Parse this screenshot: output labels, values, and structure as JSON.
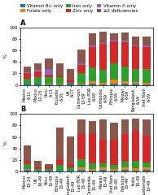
{
  "chart_data": [
    {
      "type": "bar",
      "stacked": true,
      "title": "A",
      "ylabel": "%",
      "categories": [
        "Mexico\n6-11",
        "Mexico\n12-23",
        "Peru\n6-11",
        "Ecuador\n6-35",
        "UK\n6-17",
        "Cameroon\n12-59",
        "Lao PDR\n6-59",
        "Cambodia\n6-59",
        "Ethiopia\n6-59",
        "Malawi\n6-59",
        "Bangladesh\n6-59",
        "Viet Nam\n6-59"
      ],
      "series": [
        {
          "name": "Vitamin B₁₂ only",
          "values": [
            2,
            2,
            1,
            1,
            2,
            1,
            2,
            1,
            2,
            2,
            2,
            1
          ]
        },
        {
          "name": "Folate only",
          "values": [
            1,
            1,
            1,
            2,
            0,
            2,
            4,
            3,
            8,
            5,
            3,
            3
          ]
        },
        {
          "name": "Iron only",
          "values": [
            8,
            10,
            12,
            10,
            2,
            18,
            25,
            22,
            28,
            25,
            22,
            24
          ]
        },
        {
          "name": "Zinc only",
          "values": [
            10,
            10,
            4,
            4,
            6,
            14,
            35,
            45,
            38,
            42,
            40,
            38
          ]
        },
        {
          "name": "Vitamin A only",
          "values": [
            1,
            3,
            10,
            0,
            0,
            2,
            3,
            2,
            2,
            3,
            2,
            2
          ]
        },
        {
          "name": "≥2 deficiencies",
          "values": [
            10,
            12,
            18,
            20,
            18,
            25,
            20,
            20,
            12,
            14,
            15,
            16
          ]
        }
      ],
      "ylim": [
        0,
        100
      ],
      "yticks": [
        0,
        20,
        40,
        60,
        80,
        100
      ],
      "legend": "upper center"
    },
    {
      "type": "bar",
      "stacked": true,
      "title": "B",
      "ylabel": "%",
      "categories": [
        "Mexico\n15-24",
        "UK\n16-49",
        "Peru\n15-49",
        "Ethiopia\n15-49",
        "Bangladesh\n15-49",
        "Lao PDR\n15-49",
        "Cambodia\n15-49",
        "Malawi\n15-49",
        "Viet Nam\n15-49",
        "Pakistan\n15-49",
        "India\n15-49",
        "Guatemala\n15-49"
      ],
      "series": [
        {
          "name": "Vitamin B₁₂ only",
          "values": [
            3,
            2,
            1,
            1,
            2,
            3,
            2,
            3,
            2,
            3,
            2,
            3
          ]
        },
        {
          "name": "Folate only",
          "values": [
            2,
            0,
            0,
            0,
            0,
            4,
            3,
            4,
            3,
            4,
            4,
            5
          ]
        },
        {
          "name": "Iron only",
          "values": [
            8,
            2,
            4,
            10,
            6,
            14,
            10,
            8,
            6,
            10,
            12,
            8
          ]
        },
        {
          "name": "Zinc only",
          "values": [
            5,
            3,
            2,
            10,
            5,
            44,
            52,
            40,
            44,
            48,
            52,
            46
          ]
        },
        {
          "name": "Vitamin A only",
          "values": [
            0,
            0,
            0,
            0,
            0,
            0,
            0,
            0,
            0,
            0,
            0,
            0
          ]
        },
        {
          "name": "≥2 deficiencies",
          "values": [
            28,
            12,
            6,
            55,
            48,
            25,
            20,
            35,
            30,
            26,
            22,
            28
          ]
        }
      ],
      "ylim": [
        0,
        100
      ],
      "yticks": [
        0,
        20,
        40,
        60,
        80,
        100
      ]
    }
  ]
}
